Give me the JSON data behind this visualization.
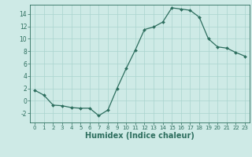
{
  "x": [
    0,
    1,
    2,
    3,
    4,
    5,
    6,
    7,
    8,
    9,
    10,
    11,
    12,
    13,
    14,
    15,
    16,
    17,
    18,
    19,
    20,
    21,
    22,
    23
  ],
  "y": [
    1.7,
    0.9,
    -0.7,
    -0.8,
    -1.1,
    -1.2,
    -1.2,
    -2.4,
    -1.5,
    2.0,
    5.2,
    8.2,
    11.5,
    11.9,
    12.7,
    15.0,
    14.8,
    14.6,
    13.5,
    10.0,
    8.7,
    8.5,
    7.8,
    7.2
  ],
  "line_color": "#2d6e5e",
  "marker": "D",
  "marker_size": 2.0,
  "bg_color": "#ceeae6",
  "grid_major_color": "#aad4ce",
  "grid_minor_color": "#bde0db",
  "tick_color": "#2d6e5e",
  "xlabel": "Humidex (Indice chaleur)",
  "ylim": [
    -3.5,
    15.5
  ],
  "yticks": [
    -2,
    0,
    2,
    4,
    6,
    8,
    10,
    12,
    14
  ],
  "xticks": [
    0,
    1,
    2,
    3,
    4,
    5,
    6,
    7,
    8,
    9,
    10,
    11,
    12,
    13,
    14,
    15,
    16,
    17,
    18,
    19,
    20,
    21,
    22,
    23
  ],
  "xlim": [
    -0.5,
    23.5
  ]
}
